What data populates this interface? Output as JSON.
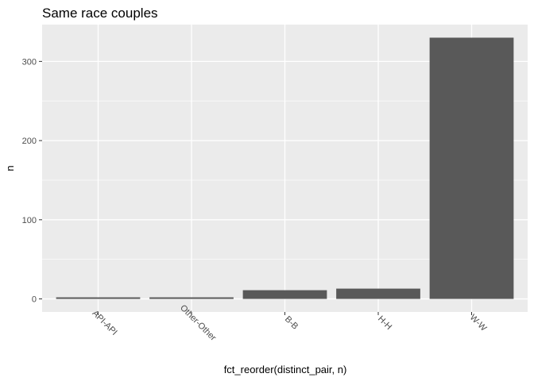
{
  "chart_data": {
    "type": "bar",
    "title": "Same race couples",
    "xlabel": "fct_reorder(distinct_pair, n)",
    "ylabel": "n",
    "categories": [
      "API-API",
      "Other-Other",
      "B-B",
      "H-H",
      "W-W"
    ],
    "values": [
      2,
      2,
      11,
      13,
      330
    ],
    "ylim": [
      -16.5,
      346.5
    ],
    "y_ticks": [
      0,
      100,
      200,
      300
    ],
    "grid": true,
    "colors": {
      "panel_background": "#EBEBEB",
      "grid_major": "#FFFFFF",
      "bar_fill": "#595959",
      "tick_text": "#4D4D4D",
      "text": "#000000"
    }
  }
}
